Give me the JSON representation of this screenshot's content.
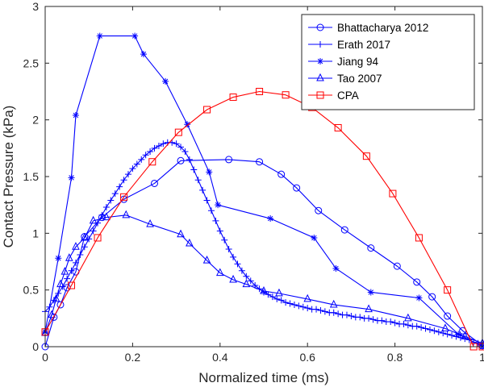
{
  "chart_data": {
    "type": "line",
    "title": "",
    "xlabel": "Normalized time (ms)",
    "ylabel": "Contact Pressure (kPa)",
    "xlim": [
      0,
      1
    ],
    "ylim": [
      0,
      3
    ],
    "xticks": [
      0,
      0.2,
      0.4,
      0.6,
      0.8,
      1
    ],
    "xtick_labels": [
      "0",
      "0.2",
      "0.4",
      "0.6",
      "0.8",
      "1"
    ],
    "yticks": [
      0,
      0.5,
      1,
      1.5,
      2,
      2.5,
      3
    ],
    "ytick_labels": [
      "0",
      "0.5",
      "1",
      "1.5",
      "2",
      "2.5",
      "3"
    ],
    "grid": false,
    "legend_position": "top-right",
    "series": [
      {
        "name": "Bhattacharya 2012",
        "color": "#0000ff",
        "marker": "circle",
        "x": [
          0.0,
          0.02,
          0.035,
          0.05,
          0.07,
          0.09,
          0.13,
          0.18,
          0.25,
          0.31,
          0.42,
          0.49,
          0.54,
          0.575,
          0.625,
          0.685,
          0.745,
          0.805,
          0.85,
          0.885,
          0.92,
          0.955,
          1.0
        ],
        "y": [
          0.0,
          0.26,
          0.37,
          0.52,
          0.66,
          0.97,
          1.14,
          1.3,
          1.44,
          1.64,
          1.65,
          1.63,
          1.52,
          1.4,
          1.2,
          1.03,
          0.87,
          0.71,
          0.57,
          0.44,
          0.27,
          0.14,
          0.01
        ]
      },
      {
        "name": "Erath 2017",
        "color": "#0000ff",
        "marker": "plus",
        "x": [
          0.0,
          0.01,
          0.02,
          0.03,
          0.04,
          0.05,
          0.06,
          0.07,
          0.08,
          0.09,
          0.1,
          0.11,
          0.12,
          0.13,
          0.14,
          0.15,
          0.16,
          0.17,
          0.18,
          0.19,
          0.2,
          0.21,
          0.22,
          0.23,
          0.24,
          0.25,
          0.26,
          0.27,
          0.28,
          0.29,
          0.3,
          0.31,
          0.32,
          0.33,
          0.34,
          0.35,
          0.36,
          0.37,
          0.38,
          0.39,
          0.4,
          0.41,
          0.42,
          0.43,
          0.44,
          0.45,
          0.46,
          0.47,
          0.48,
          0.49,
          0.5,
          0.51,
          0.52,
          0.53,
          0.54,
          0.55,
          0.56,
          0.57,
          0.58,
          0.59,
          0.6,
          0.61,
          0.62,
          0.63,
          0.64,
          0.65,
          0.66,
          0.67,
          0.68,
          0.69,
          0.7,
          0.71,
          0.72,
          0.73,
          0.74,
          0.75,
          0.76,
          0.77,
          0.78,
          0.79,
          0.8,
          0.81,
          0.82,
          0.83,
          0.84,
          0.85,
          0.86,
          0.87,
          0.88,
          0.89,
          0.9,
          0.91,
          0.92,
          0.93,
          0.94,
          0.95,
          0.96,
          0.97,
          0.98,
          0.99,
          1.0
        ],
        "y": [
          0.31,
          0.35,
          0.41,
          0.47,
          0.53,
          0.6,
          0.67,
          0.74,
          0.81,
          0.88,
          0.95,
          1.02,
          1.09,
          1.16,
          1.23,
          1.29,
          1.35,
          1.41,
          1.47,
          1.52,
          1.57,
          1.61,
          1.65,
          1.69,
          1.72,
          1.75,
          1.77,
          1.79,
          1.8,
          1.8,
          1.79,
          1.76,
          1.72,
          1.65,
          1.56,
          1.47,
          1.38,
          1.29,
          1.2,
          1.11,
          1.02,
          0.94,
          0.86,
          0.79,
          0.73,
          0.67,
          0.62,
          0.58,
          0.54,
          0.51,
          0.48,
          0.46,
          0.44,
          0.42,
          0.41,
          0.39,
          0.38,
          0.37,
          0.36,
          0.35,
          0.34,
          0.33,
          0.33,
          0.32,
          0.31,
          0.3,
          0.3,
          0.29,
          0.28,
          0.28,
          0.27,
          0.26,
          0.26,
          0.25,
          0.25,
          0.24,
          0.23,
          0.23,
          0.22,
          0.22,
          0.21,
          0.2,
          0.2,
          0.19,
          0.18,
          0.18,
          0.17,
          0.16,
          0.15,
          0.14,
          0.13,
          0.12,
          0.11,
          0.1,
          0.09,
          0.08,
          0.07,
          0.06,
          0.04,
          0.03,
          0.02
        ]
      },
      {
        "name": "Jiang 94",
        "color": "#0000ff",
        "marker": "asterisk",
        "x": [
          0.0,
          0.03,
          0.06,
          0.07,
          0.125,
          0.205,
          0.225,
          0.275,
          0.325,
          0.375,
          0.395,
          0.515,
          0.615,
          0.665,
          0.745,
          0.855,
          0.945,
          1.0
        ],
        "y": [
          0.13,
          0.78,
          1.49,
          2.04,
          2.74,
          2.74,
          2.58,
          2.34,
          1.96,
          1.54,
          1.25,
          1.13,
          0.96,
          0.69,
          0.48,
          0.43,
          0.11,
          0.0
        ]
      },
      {
        "name": "Tao 2007",
        "color": "#0000ff",
        "marker": "triangle",
        "x": [
          0.0,
          0.015,
          0.025,
          0.035,
          0.045,
          0.055,
          0.07,
          0.09,
          0.11,
          0.14,
          0.185,
          0.24,
          0.31,
          0.33,
          0.37,
          0.4,
          0.43,
          0.46,
          0.5,
          0.535,
          0.6,
          0.66,
          0.74,
          0.83,
          0.915,
          0.96,
          1.0
        ],
        "y": [
          0.12,
          0.28,
          0.42,
          0.55,
          0.66,
          0.78,
          0.88,
          0.96,
          1.11,
          1.14,
          1.16,
          1.08,
          0.99,
          0.91,
          0.76,
          0.65,
          0.59,
          0.55,
          0.49,
          0.47,
          0.42,
          0.37,
          0.33,
          0.25,
          0.16,
          0.09,
          0.03
        ]
      },
      {
        "name": "CPA",
        "color": "#ff0000",
        "marker": "square",
        "x": [
          0.0,
          0.06,
          0.12,
          0.18,
          0.245,
          0.305,
          0.37,
          0.43,
          0.49,
          0.55,
          0.61,
          0.67,
          0.735,
          0.795,
          0.855,
          0.92,
          0.98,
          1.0
        ],
        "y": [
          0.13,
          0.54,
          0.96,
          1.32,
          1.63,
          1.89,
          2.09,
          2.2,
          2.25,
          2.22,
          2.11,
          1.93,
          1.68,
          1.35,
          0.96,
          0.5,
          0.0,
          0.0
        ]
      }
    ]
  }
}
